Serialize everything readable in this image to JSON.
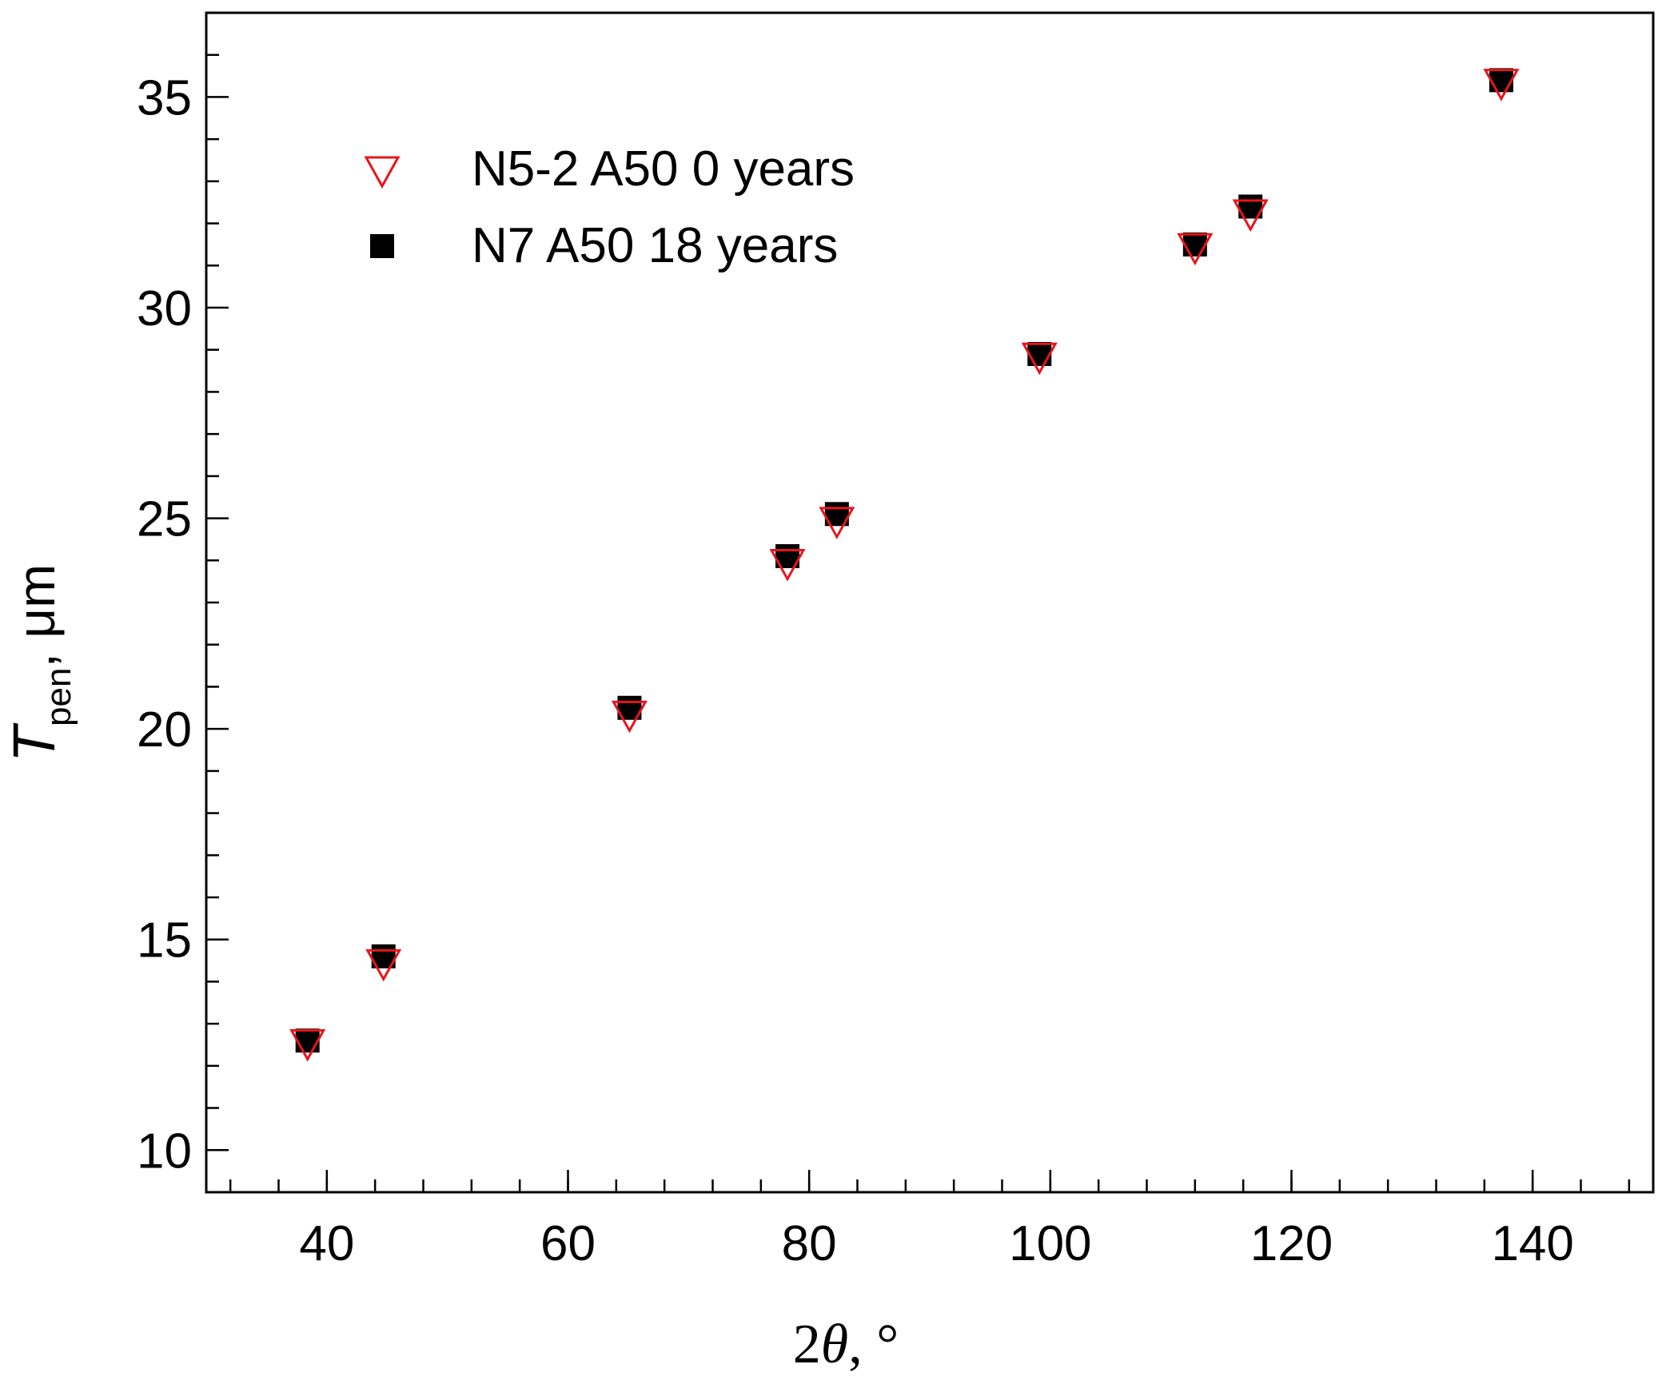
{
  "chart_data": {
    "type": "scatter",
    "title": "",
    "xlabel": "2θ, °",
    "xlabel_parts": {
      "main": "2",
      "theta": "θ",
      "unit": ", °"
    },
    "ylabel": "T_pen, μm",
    "ylabel_parts": {
      "main": "T",
      "sub": "pen",
      "unit": ", μm"
    },
    "xlim": [
      30,
      150
    ],
    "ylim": [
      9,
      37
    ],
    "x_major_ticks": [
      40,
      60,
      80,
      100,
      120,
      140
    ],
    "x_tick_labels": [
      "40",
      "60",
      "80",
      "100",
      "120",
      "140"
    ],
    "x_minor_step": 4,
    "y_major_ticks": [
      10,
      15,
      20,
      25,
      30,
      35
    ],
    "y_tick_labels": [
      "10",
      "15",
      "20",
      "25",
      "30",
      "35"
    ],
    "y_minor_step": 1,
    "grid": false,
    "legend_position": "top-left",
    "series": [
      {
        "name": "N5-2 A50 0 years",
        "marker": "triangle-down-open",
        "color": "#e8141a",
        "points": [
          {
            "x": 38.4,
            "y": 12.5
          },
          {
            "x": 44.7,
            "y": 14.4
          },
          {
            "x": 65.1,
            "y": 20.3
          },
          {
            "x": 78.2,
            "y": 23.9
          },
          {
            "x": 82.3,
            "y": 24.9
          },
          {
            "x": 99.1,
            "y": 28.8
          },
          {
            "x": 112.0,
            "y": 31.4
          },
          {
            "x": 116.6,
            "y": 32.2
          },
          {
            "x": 137.4,
            "y": 35.3
          }
        ]
      },
      {
        "name": "N7 A50 18 years",
        "marker": "square-filled",
        "color": "#000000",
        "points": [
          {
            "x": 38.4,
            "y": 12.6
          },
          {
            "x": 44.7,
            "y": 14.6
          },
          {
            "x": 65.1,
            "y": 20.5
          },
          {
            "x": 78.2,
            "y": 24.1
          },
          {
            "x": 82.3,
            "y": 25.1
          },
          {
            "x": 99.1,
            "y": 28.9
          },
          {
            "x": 112.0,
            "y": 31.5
          },
          {
            "x": 116.6,
            "y": 32.4
          },
          {
            "x": 137.4,
            "y": 35.4
          }
        ]
      }
    ]
  }
}
